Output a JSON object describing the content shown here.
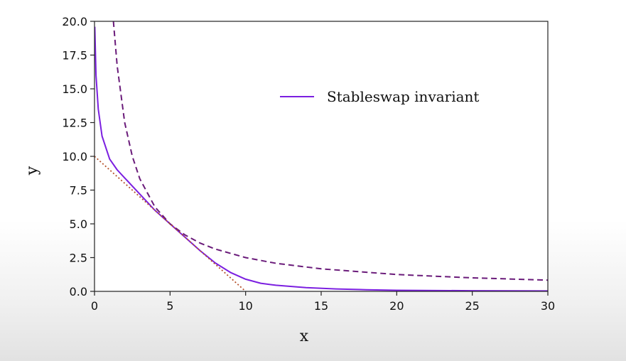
{
  "chart_data": {
    "type": "line",
    "xlabel": "x",
    "ylabel": "y",
    "xlim": [
      0,
      30
    ],
    "ylim": [
      0,
      20
    ],
    "xticks": [
      "0",
      "5",
      "10",
      "15",
      "20",
      "25",
      "30"
    ],
    "yticks": [
      "0.0",
      "2.5",
      "5.0",
      "7.5",
      "10.0",
      "12.5",
      "15.0",
      "17.5",
      "20.0"
    ],
    "grid": false,
    "legend_position": "upper-right",
    "series": [
      {
        "name": "Stableswap invariant",
        "style": "solid",
        "color": "#7b1fe0",
        "x": [
          0.02,
          0.1,
          0.25,
          0.5,
          1,
          1.5,
          2,
          3,
          4,
          5,
          6,
          7,
          8,
          9,
          10,
          11,
          12,
          14,
          16,
          18,
          20,
          25,
          30
        ],
        "y": [
          19.6,
          16.0,
          13.5,
          11.5,
          9.8,
          9.0,
          8.4,
          7.2,
          6.0,
          5.0,
          4.0,
          3.0,
          2.1,
          1.4,
          0.9,
          0.6,
          0.45,
          0.28,
          0.18,
          0.12,
          0.08,
          0.05,
          0.03
        ]
      },
      {
        "style": "dashed",
        "color": "#6a1b7a",
        "x": [
          1.25,
          1.5,
          2,
          2.5,
          3,
          4,
          5,
          6,
          7,
          8,
          10,
          12,
          15,
          20,
          25,
          30
        ],
        "y": [
          20,
          16.7,
          12.5,
          10,
          8.33,
          6.25,
          5,
          4.17,
          3.57,
          3.13,
          2.5,
          2.08,
          1.67,
          1.25,
          1.0,
          0.83
        ]
      },
      {
        "style": "dotted",
        "color": "#b5502a",
        "x": [
          0,
          10
        ],
        "y": [
          10,
          0
        ]
      }
    ]
  }
}
